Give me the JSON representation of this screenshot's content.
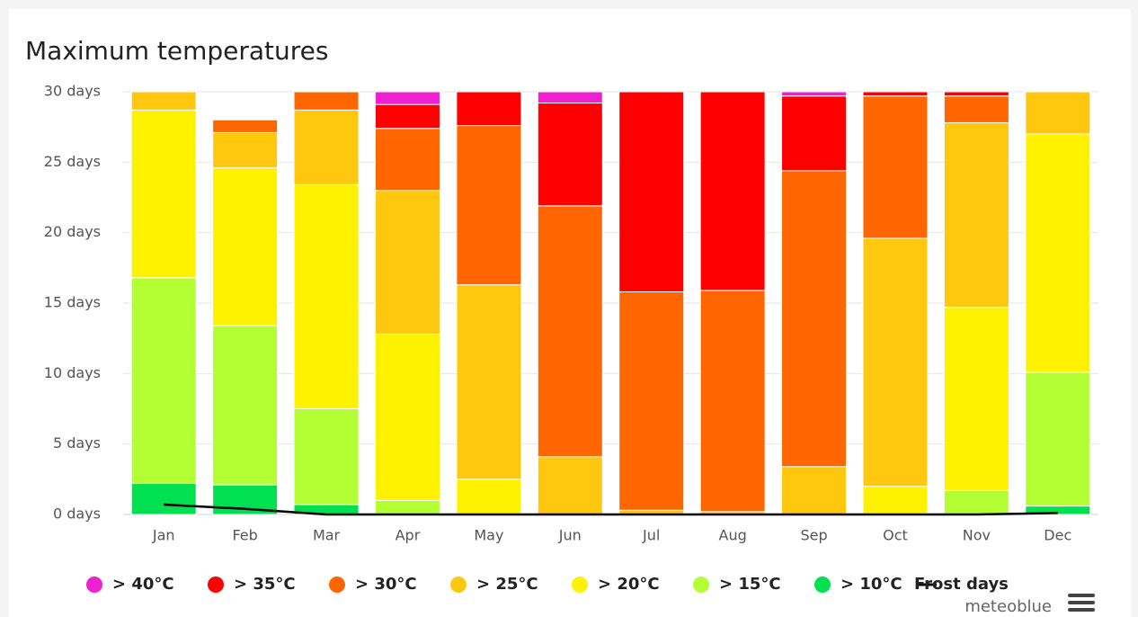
{
  "chart_data": {
    "type": "bar",
    "stacked": true,
    "title": "Maximum temperatures",
    "credit": "meteoblue",
    "categories": [
      "Jan",
      "Feb",
      "Mar",
      "Apr",
      "May",
      "Jun",
      "Jul",
      "Aug",
      "Sep",
      "Oct",
      "Nov",
      "Dec"
    ],
    "series": [
      {
        "name": "> 40°C",
        "color": "#f01fd0",
        "values": [
          0,
          0,
          0,
          0.9,
          0,
          0.8,
          0,
          0,
          0.3,
          0,
          0,
          0
        ]
      },
      {
        "name": "> 35°C",
        "color": "#ff0000",
        "values": [
          0,
          0,
          0,
          1.7,
          2.4,
          7.3,
          14.2,
          14.1,
          5.3,
          0.3,
          0.3,
          0
        ]
      },
      {
        "name": "> 30°C",
        "color": "#ff6600",
        "values": [
          0,
          0.9,
          1.3,
          4.4,
          11.3,
          17.8,
          15.5,
          15.7,
          21.0,
          10.1,
          1.9,
          0
        ]
      },
      {
        "name": "> 25°C",
        "color": "#ffc80f",
        "values": [
          1.3,
          2.5,
          5.3,
          10.2,
          13.8,
          4.1,
          0.3,
          0.2,
          3.4,
          17.6,
          13.1,
          3.0
        ]
      },
      {
        "name": "> 20°C",
        "color": "#fff200",
        "values": [
          11.9,
          11.2,
          15.9,
          11.8,
          2.5,
          0,
          0,
          0,
          0,
          2.0,
          13.0,
          16.9
        ]
      },
      {
        "name": "> 15°C",
        "color": "#b3ff33",
        "values": [
          14.6,
          11.3,
          6.8,
          1.0,
          0,
          0,
          0,
          0,
          0,
          0,
          1.7,
          9.5
        ]
      },
      {
        "name": "> 10°C",
        "color": "#00e050",
        "values": [
          2.2,
          2.1,
          0.7,
          0,
          0,
          0,
          0,
          0,
          0,
          0,
          0,
          0.6
        ]
      },
      {
        "name": "Frost days",
        "type": "line",
        "color": "#000000",
        "values": [
          0.7,
          0.4,
          0,
          0,
          0,
          0,
          0,
          0,
          0,
          0,
          0,
          0.1
        ]
      }
    ],
    "ylim": [
      0,
      30
    ],
    "yticks": [
      {
        "value": 0,
        "label": "0 days"
      },
      {
        "value": 5,
        "label": "5 days"
      },
      {
        "value": 10,
        "label": "10 days"
      },
      {
        "value": 15,
        "label": "15 days"
      },
      {
        "value": 20,
        "label": "20 days"
      },
      {
        "value": 25,
        "label": "25 days"
      },
      {
        "value": 30,
        "label": "30 days"
      }
    ],
    "grid": true
  }
}
